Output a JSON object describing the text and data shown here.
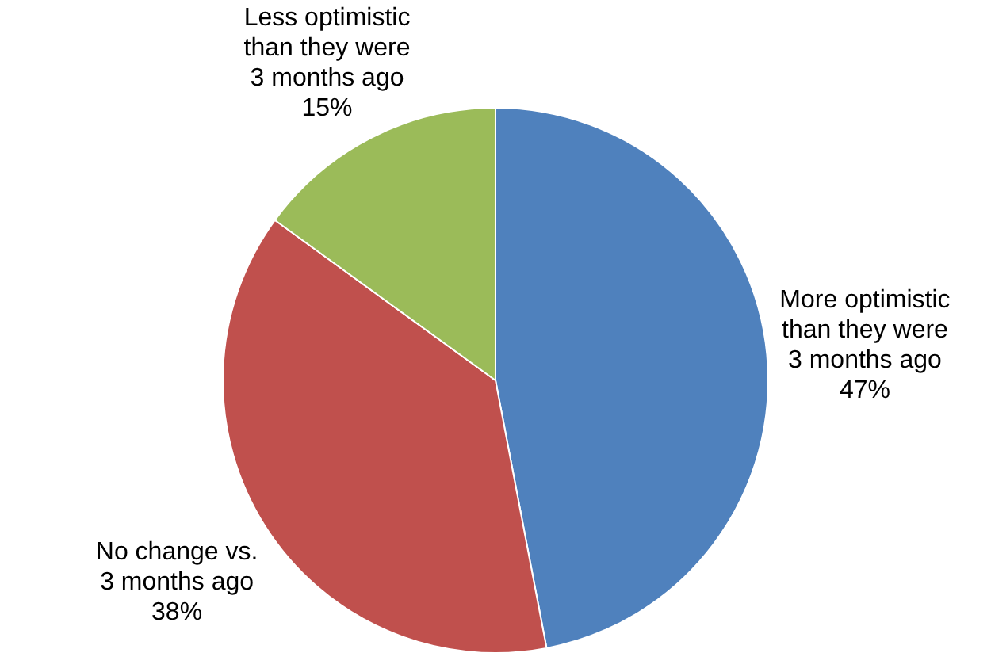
{
  "chart_data": {
    "type": "pie",
    "categories": [
      "More optimistic than they were 3 months ago",
      "No change vs. 3 months ago",
      "Less optimistic than they were 3 months ago"
    ],
    "values": [
      47,
      38,
      15
    ],
    "colors": [
      "#4f81bd",
      "#c0504d",
      "#9bbb59"
    ],
    "value_labels": [
      "47%",
      "38%",
      "15%"
    ],
    "legend": false
  }
}
